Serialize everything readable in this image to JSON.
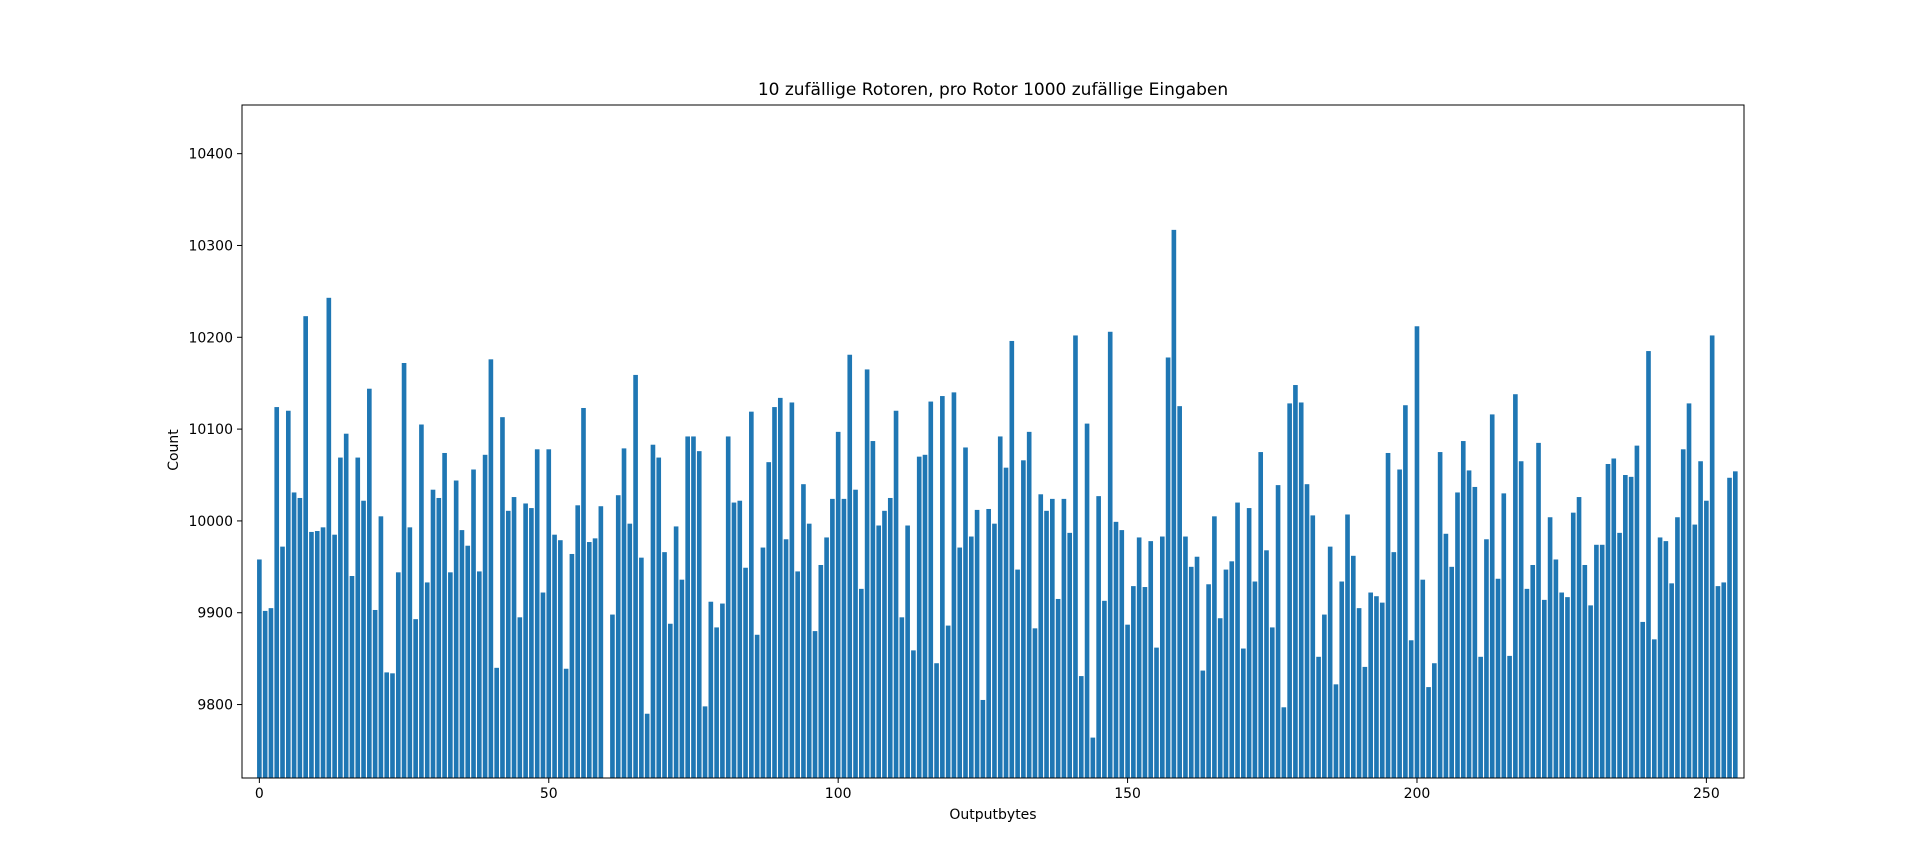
{
  "chart_data": {
    "type": "bar",
    "title": "10 zufällige Rotoren, pro Rotor 1000 zufällige Eingaben",
    "xlabel": "Outputbytes",
    "ylabel": "Count",
    "xlim": [
      -3,
      256.5
    ],
    "ylim": [
      9720,
      10453
    ],
    "x_ticks": [
      0,
      50,
      100,
      150,
      200,
      250
    ],
    "y_ticks": [
      9800,
      9900,
      10000,
      10100,
      10200,
      10300,
      10400
    ],
    "x_tick_labels": [
      "0",
      "50",
      "100",
      "150",
      "200",
      "250"
    ],
    "y_tick_labels": [
      "9800",
      "9900",
      "10000",
      "10100",
      "10200",
      "10300",
      "10400"
    ],
    "bar_color": "#1f77b4",
    "categories": [
      0,
      1,
      2,
      3,
      4,
      5,
      6,
      7,
      8,
      9,
      10,
      11,
      12,
      13,
      14,
      15,
      16,
      17,
      18,
      19,
      20,
      21,
      22,
      23,
      24,
      25,
      26,
      27,
      28,
      29,
      30,
      31,
      32,
      33,
      34,
      35,
      36,
      37,
      38,
      39,
      40,
      41,
      42,
      43,
      44,
      45,
      46,
      47,
      48,
      49,
      50,
      51,
      52,
      53,
      54,
      55,
      56,
      57,
      58,
      59,
      60,
      61,
      62,
      63,
      64,
      65,
      66,
      67,
      68,
      69,
      70,
      71,
      72,
      73,
      74,
      75,
      76,
      77,
      78,
      79,
      80,
      81,
      82,
      83,
      84,
      85,
      86,
      87,
      88,
      89,
      90,
      91,
      92,
      93,
      94,
      95,
      96,
      97,
      98,
      99,
      100,
      101,
      102,
      103,
      104,
      105,
      106,
      107,
      108,
      109,
      110,
      111,
      112,
      113,
      114,
      115,
      116,
      117,
      118,
      119,
      120,
      121,
      122,
      123,
      124,
      125,
      126,
      127,
      128,
      129,
      130,
      131,
      132,
      133,
      134,
      135,
      136,
      137,
      138,
      139,
      140,
      141,
      142,
      143,
      144,
      145,
      146,
      147,
      148,
      149,
      150,
      151,
      152,
      153,
      154,
      155,
      156,
      157,
      158,
      159,
      160,
      161,
      162,
      163,
      164,
      165,
      166,
      167,
      168,
      169,
      170,
      171,
      172,
      173,
      174,
      175,
      176,
      177,
      178,
      179,
      180,
      181,
      182,
      183,
      184,
      185,
      186,
      187,
      188,
      189,
      190,
      191,
      192,
      193,
      194,
      195,
      196,
      197,
      198,
      199,
      200,
      201,
      202,
      203,
      204,
      205,
      206,
      207,
      208,
      209,
      210,
      211,
      212,
      213,
      214,
      215,
      216,
      217,
      218,
      219,
      220,
      221,
      222,
      223,
      224,
      225,
      226,
      227,
      228,
      229,
      230,
      231,
      232,
      233,
      234,
      235,
      236,
      237,
      238,
      239,
      240,
      241,
      242,
      243,
      244,
      245,
      246,
      247,
      248,
      249,
      250,
      251,
      252,
      253,
      254,
      255
    ],
    "values": [
      9958,
      9902,
      9905,
      10124,
      9972,
      10120,
      10031,
      10025,
      10223,
      9988,
      9989,
      9993,
      10243,
      9985,
      10069,
      10095,
      9940,
      10069,
      10022,
      10144,
      9903,
      10005,
      9835,
      9834,
      9944,
      10172,
      9993,
      9893,
      10105,
      9933,
      10034,
      10025,
      10074,
      9944,
      10044,
      9990,
      9973,
      10056,
      9945,
      10072,
      10176,
      9840,
      10113,
      10011,
      10026,
      9895,
      10019,
      10014,
      10078,
      9922,
      10078,
      9985,
      9979,
      9839,
      9964,
      10017,
      10123,
      9977,
      9981,
      10016,
      9720,
      9898,
      10028,
      10079,
      9997,
      10159,
      9960,
      9790,
      10083,
      10069,
      9966,
      9888,
      9994,
      9936,
      10092,
      10092,
      10076,
      9798,
      9912,
      9884,
      9910,
      10092,
      10020,
      10022,
      9949,
      10119,
      9876,
      9971,
      10064,
      10124,
      10134,
      9980,
      10129,
      9945,
      10040,
      9997,
      9880,
      9952,
      9982,
      10024,
      10097,
      10024,
      10181,
      10034,
      9926,
      10165,
      10087,
      9995,
      10011,
      10025,
      10120,
      9895,
      9995,
      9859,
      10070,
      10072,
      10130,
      9845,
      10136,
      9886,
      10140,
      9971,
      10080,
      9983,
      10012,
      9805,
      10013,
      9997,
      10092,
      10058,
      10196,
      9947,
      10066,
      10097,
      9883,
      10029,
      10011,
      10024,
      9915,
      10024,
      9987,
      10202,
      9831,
      10106,
      9764,
      10027,
      9913,
      10206,
      9999,
      9990,
      9887,
      9929,
      9982,
      9928,
      9978,
      9862,
      9983,
      10178,
      10317,
      10125,
      9983,
      9950,
      9961,
      9837,
      9931,
      10005,
      9894,
      9947,
      9956,
      10020,
      9861,
      10014,
      9934,
      10075,
      9968,
      9884,
      10039,
      9797,
      10128,
      10148,
      10129,
      10040,
      10006,
      9852,
      9898,
      9972,
      9822,
      9934,
      10007,
      9962,
      9905,
      9841,
      9922,
      9918,
      9911,
      10074,
      9966,
      10056,
      10126,
      9870,
      10212,
      9936,
      9819,
      9845,
      10075,
      9986,
      9950,
      10031,
      10087,
      10055,
      10037,
      9852,
      9980,
      10116,
      9937,
      10030,
      9853,
      10138,
      10065,
      9926,
      9952,
      10085,
      9914,
      10004,
      9958,
      9922,
      9917,
      10009,
      10026,
      9952,
      9908,
      9974,
      9974,
      10062,
      10068,
      9987,
      10050,
      10048,
      10082,
      9890,
      10185,
      9871,
      9982,
      9978,
      9932,
      10004,
      10078,
      10128,
      9996,
      10065,
      10022,
      10202,
      9929,
      9933,
      10047,
      10054
    ]
  }
}
